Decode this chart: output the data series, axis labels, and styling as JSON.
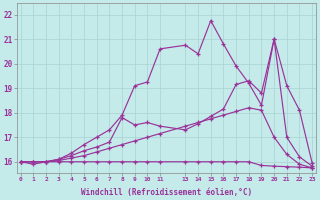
{
  "xlabel": "Windchill (Refroidissement éolien,°C)",
  "bg_color": "#c5eaea",
  "grid_color": "#a8d4d4",
  "line_color": "#993399",
  "xlim": [
    -0.3,
    23.3
  ],
  "ylim": [
    15.55,
    22.45
  ],
  "xtick_pos": [
    0,
    1,
    2,
    3,
    4,
    5,
    6,
    7,
    8,
    9,
    10,
    11,
    13,
    14,
    15,
    16,
    17,
    18,
    19,
    20,
    21,
    22,
    23
  ],
  "xtick_labels": [
    "0",
    "1",
    "2",
    "3",
    "4",
    "5",
    "6",
    "7",
    "8",
    "9",
    "10",
    "11",
    "13",
    "14",
    "15",
    "16",
    "17",
    "18",
    "19",
    "20",
    "21",
    "22",
    "23"
  ],
  "yticks": [
    16,
    17,
    18,
    19,
    20,
    21,
    22
  ],
  "line1": {
    "x": [
      0,
      1,
      2,
      3,
      4,
      5,
      6,
      7,
      8,
      9,
      10,
      11,
      13,
      14,
      15,
      16,
      17,
      18,
      19,
      20,
      21,
      22,
      23
    ],
    "y": [
      16,
      16,
      16,
      16,
      16,
      16,
      16,
      16,
      16,
      16,
      16,
      16,
      16,
      16,
      16,
      16,
      16,
      16,
      15.85,
      15.82,
      15.8,
      15.78,
      15.75
    ]
  },
  "line2": {
    "x": [
      0,
      1,
      2,
      3,
      4,
      5,
      6,
      7,
      8,
      9,
      10,
      11,
      13,
      14,
      15,
      16,
      17,
      18,
      19,
      20,
      21,
      22,
      23
    ],
    "y": [
      16,
      16,
      16,
      16.05,
      16.15,
      16.25,
      16.4,
      16.55,
      16.7,
      16.85,
      17.0,
      17.15,
      17.45,
      17.6,
      17.75,
      17.9,
      18.05,
      18.2,
      18.1,
      17.0,
      16.3,
      15.9,
      15.75
    ]
  },
  "line3": {
    "x": [
      0,
      1,
      2,
      3,
      4,
      5,
      6,
      7,
      8,
      9,
      10,
      11,
      13,
      14,
      15,
      16,
      17,
      18,
      19,
      20,
      21,
      22,
      23
    ],
    "y": [
      16,
      16,
      16,
      16.1,
      16.25,
      16.45,
      16.6,
      16.8,
      17.8,
      17.5,
      17.6,
      17.45,
      17.3,
      17.55,
      17.85,
      18.15,
      19.15,
      19.3,
      18.8,
      21.0,
      17.0,
      16.2,
      15.82
    ]
  },
  "line4": {
    "x": [
      0,
      1,
      2,
      3,
      4,
      5,
      6,
      7,
      8,
      9,
      10,
      11,
      13,
      14,
      15,
      16,
      17,
      18,
      19,
      20,
      21,
      22,
      23
    ],
    "y": [
      16,
      15.9,
      16.0,
      16.1,
      16.35,
      16.7,
      17.0,
      17.3,
      17.9,
      19.1,
      19.25,
      20.6,
      20.75,
      20.4,
      21.75,
      20.8,
      19.9,
      19.2,
      18.3,
      21.0,
      19.1,
      18.1,
      15.95
    ]
  }
}
